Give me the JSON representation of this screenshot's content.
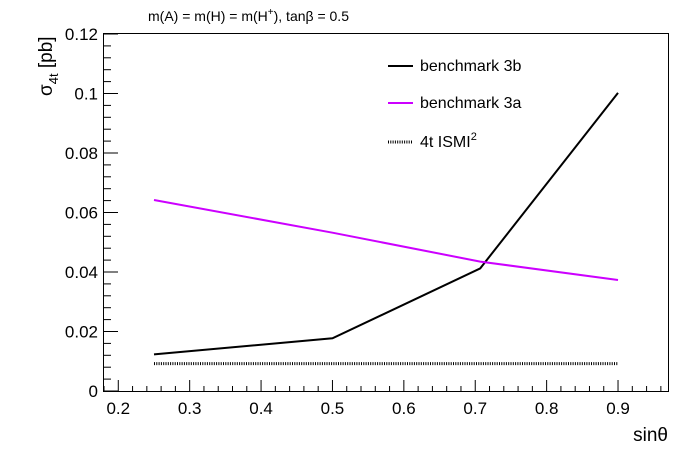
{
  "chart_data": {
    "type": "line",
    "title_parts": {
      "before_sup": "m(A) = m(H) = m(H",
      "sup": "+",
      "after_sup": "), tanβ = 0.5"
    },
    "xlabel": "sinθ",
    "ylabel": {
      "main": "σ",
      "sub": "4t",
      "rest": " [pb]"
    },
    "xlim": [
      0.18,
      0.97
    ],
    "ylim": [
      0,
      0.12
    ],
    "x_ticks": [
      "0.2",
      "0.3",
      "0.4",
      "0.5",
      "0.6",
      "0.7",
      "0.8",
      "0.9"
    ],
    "y_ticks": [
      "0",
      "0.02",
      "0.04",
      "0.06",
      "0.08",
      "0.1",
      "0.12"
    ],
    "grid": false,
    "legend_position": "top-right",
    "series": [
      {
        "name": "benchmark 3b",
        "color": "#000000",
        "style": "solid",
        "x": [
          0.25,
          0.5,
          0.707,
          0.9
        ],
        "y": [
          0.0123,
          0.0177,
          0.0412,
          0.1002
        ]
      },
      {
        "name": "benchmark 3a",
        "color": "#cc00ff",
        "style": "solid",
        "x": [
          0.25,
          0.5,
          0.707,
          0.9
        ],
        "y": [
          0.0642,
          0.0532,
          0.0435,
          0.0373
        ]
      },
      {
        "name_parts": {
          "main": "4t  ISMI",
          "sup": "2"
        },
        "color": "#000000",
        "style": "dotted",
        "x": [
          0.25,
          0.9
        ],
        "y": [
          0.0092,
          0.0092
        ]
      }
    ]
  }
}
